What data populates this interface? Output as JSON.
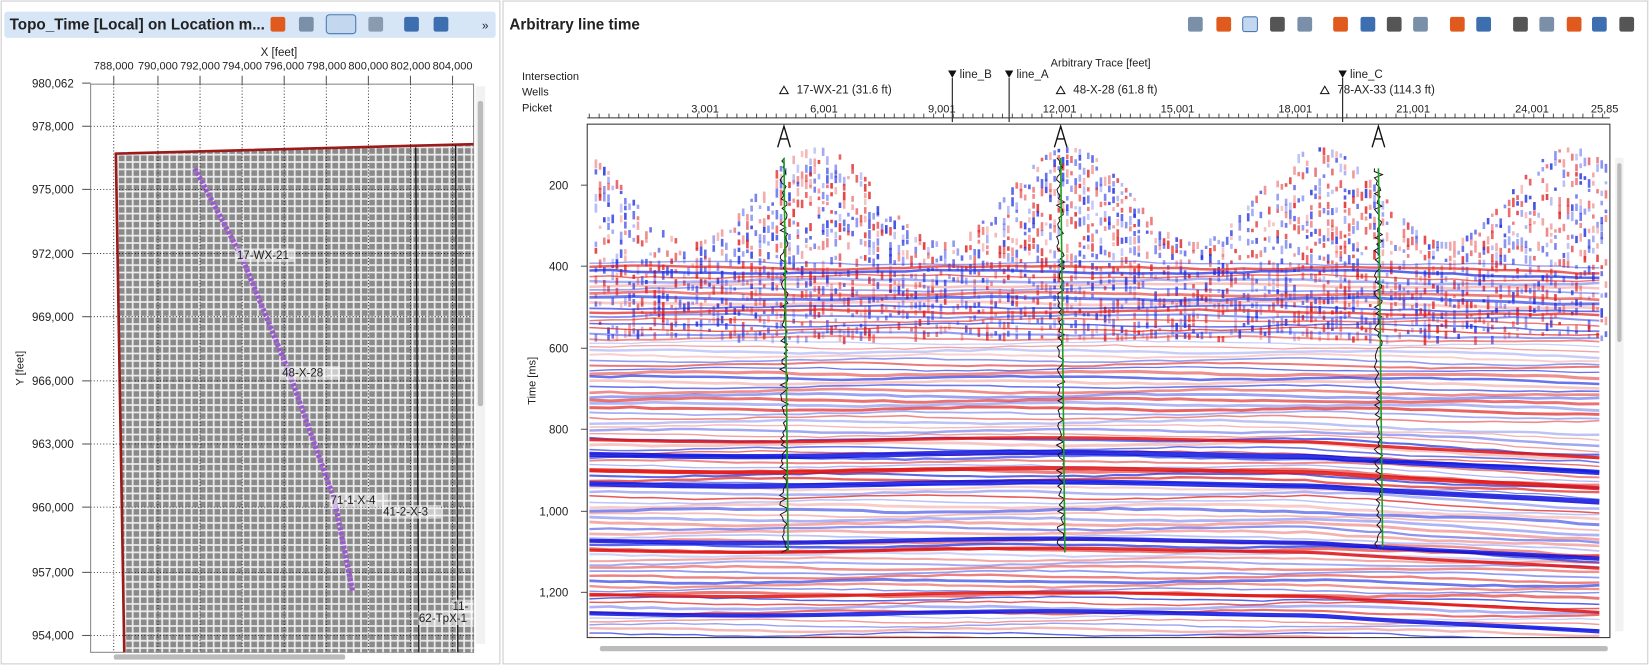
{
  "left_panel": {
    "title": "Topo_Time [Local] on Location m...",
    "x_axis_label": "X [feet]",
    "x_ticks": [
      "788,000",
      "790,000",
      "792,000",
      "794,000",
      "796,000",
      "798,000",
      "800,000",
      "802,000",
      "804,000"
    ],
    "y_axis_label": "Y [feet]",
    "y_ticks": [
      "980,062",
      "978,000",
      "975,000",
      "972,000",
      "969,000",
      "966,000",
      "963,000",
      "960,000",
      "957,000",
      "954,000"
    ],
    "well_labels": [
      "17-WX-21",
      "48-X-28",
      "71-1-X-4",
      "41-2-X-3",
      "11-",
      "62-TpX-1"
    ]
  },
  "right_panel": {
    "title": "Arbitrary line time",
    "row_labels": [
      "Intersection",
      "Wells",
      "Picket"
    ],
    "x_axis_label": "Arbitrary Trace [feet]",
    "intersections": [
      "line_B",
      "line_A",
      "line_C"
    ],
    "wells": [
      "17-WX-21 (31.6 ft)",
      "48-X-28 (61.8 ft)",
      "78-AX-33 (114.3 ft)"
    ],
    "x_ticks": [
      "3,001",
      "6,001",
      "9,001",
      "12,001",
      "15,001",
      "18,001",
      "21,001",
      "24,001",
      "25,85"
    ],
    "y_axis_label": "Time [ms]",
    "y_ticks": [
      "200",
      "400",
      "600",
      "800",
      "1,000",
      "1,200"
    ]
  }
}
